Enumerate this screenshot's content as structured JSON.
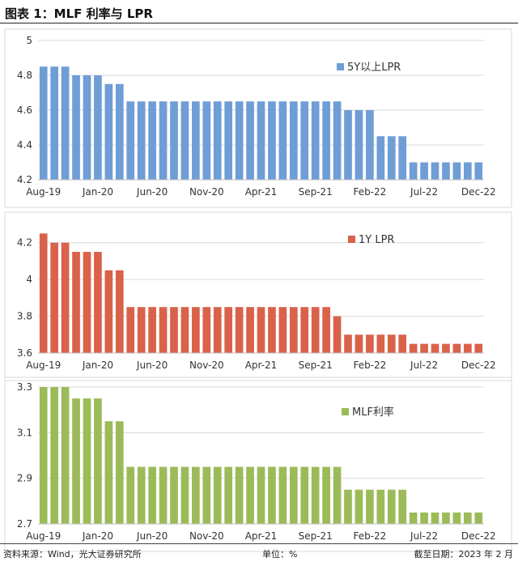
{
  "figure_title": "图表 1：MLF 利率与 LPR",
  "footer": {
    "source": "资料来源：Wind，光大证券研究所",
    "unit": "单位：%",
    "date": "截至日期：2023 年 2 月"
  },
  "chart_data": [
    {
      "type": "bar",
      "legend": "5Y以上LPR",
      "color": "#6f9dd6",
      "ylim": [
        4.2,
        5.0
      ],
      "yticks": [
        "4.2",
        "4.4",
        "4.6",
        "4.8",
        "5"
      ],
      "xticks": [
        "Aug-19",
        "Jan-20",
        "Jun-20",
        "Nov-20",
        "Apr-21",
        "Sep-21",
        "Feb-22",
        "Jul-22",
        "Dec-22"
      ],
      "values": [
        4.85,
        4.85,
        4.85,
        4.8,
        4.8,
        4.8,
        4.75,
        4.75,
        4.65,
        4.65,
        4.65,
        4.65,
        4.65,
        4.65,
        4.65,
        4.65,
        4.65,
        4.65,
        4.65,
        4.65,
        4.65,
        4.65,
        4.65,
        4.65,
        4.65,
        4.65,
        4.65,
        4.65,
        4.6,
        4.6,
        4.6,
        4.45,
        4.45,
        4.45,
        4.3,
        4.3,
        4.3,
        4.3,
        4.3,
        4.3,
        4.3
      ]
    },
    {
      "type": "bar",
      "legend": "1Y LPR",
      "color": "#d9624a",
      "ylim": [
        3.6,
        4.3
      ],
      "yticks": [
        "3.6",
        "3.8",
        "4",
        "4.2"
      ],
      "xticks": [
        "Aug-19",
        "Jan-20",
        "Jun-20",
        "Nov-20",
        "Apr-21",
        "Sep-21",
        "Feb-22",
        "Jul-22",
        "Dec-22"
      ],
      "values": [
        4.25,
        4.2,
        4.2,
        4.15,
        4.15,
        4.15,
        4.05,
        4.05,
        3.85,
        3.85,
        3.85,
        3.85,
        3.85,
        3.85,
        3.85,
        3.85,
        3.85,
        3.85,
        3.85,
        3.85,
        3.85,
        3.85,
        3.85,
        3.85,
        3.85,
        3.85,
        3.85,
        3.8,
        3.7,
        3.7,
        3.7,
        3.7,
        3.7,
        3.7,
        3.65,
        3.65,
        3.65,
        3.65,
        3.65,
        3.65,
        3.65
      ]
    },
    {
      "type": "bar",
      "legend": "MLF利率",
      "color": "#9bbb59",
      "ylim": [
        2.7,
        3.3
      ],
      "yticks": [
        "2.7",
        "2.9",
        "3.1",
        "3.3"
      ],
      "xticks": [
        "Aug-19",
        "Jan-20",
        "Jun-20",
        "Nov-20",
        "Apr-21",
        "Sep-21",
        "Feb-22",
        "Jul-22",
        "Dec-22"
      ],
      "values": [
        3.3,
        3.3,
        3.3,
        3.25,
        3.25,
        3.25,
        3.15,
        3.15,
        2.95,
        2.95,
        2.95,
        2.95,
        2.95,
        2.95,
        2.95,
        2.95,
        2.95,
        2.95,
        2.95,
        2.95,
        2.95,
        2.95,
        2.95,
        2.95,
        2.95,
        2.95,
        2.95,
        2.95,
        2.85,
        2.85,
        2.85,
        2.85,
        2.85,
        2.85,
        2.75,
        2.75,
        2.75,
        2.75,
        2.75,
        2.75,
        2.75
      ]
    }
  ]
}
